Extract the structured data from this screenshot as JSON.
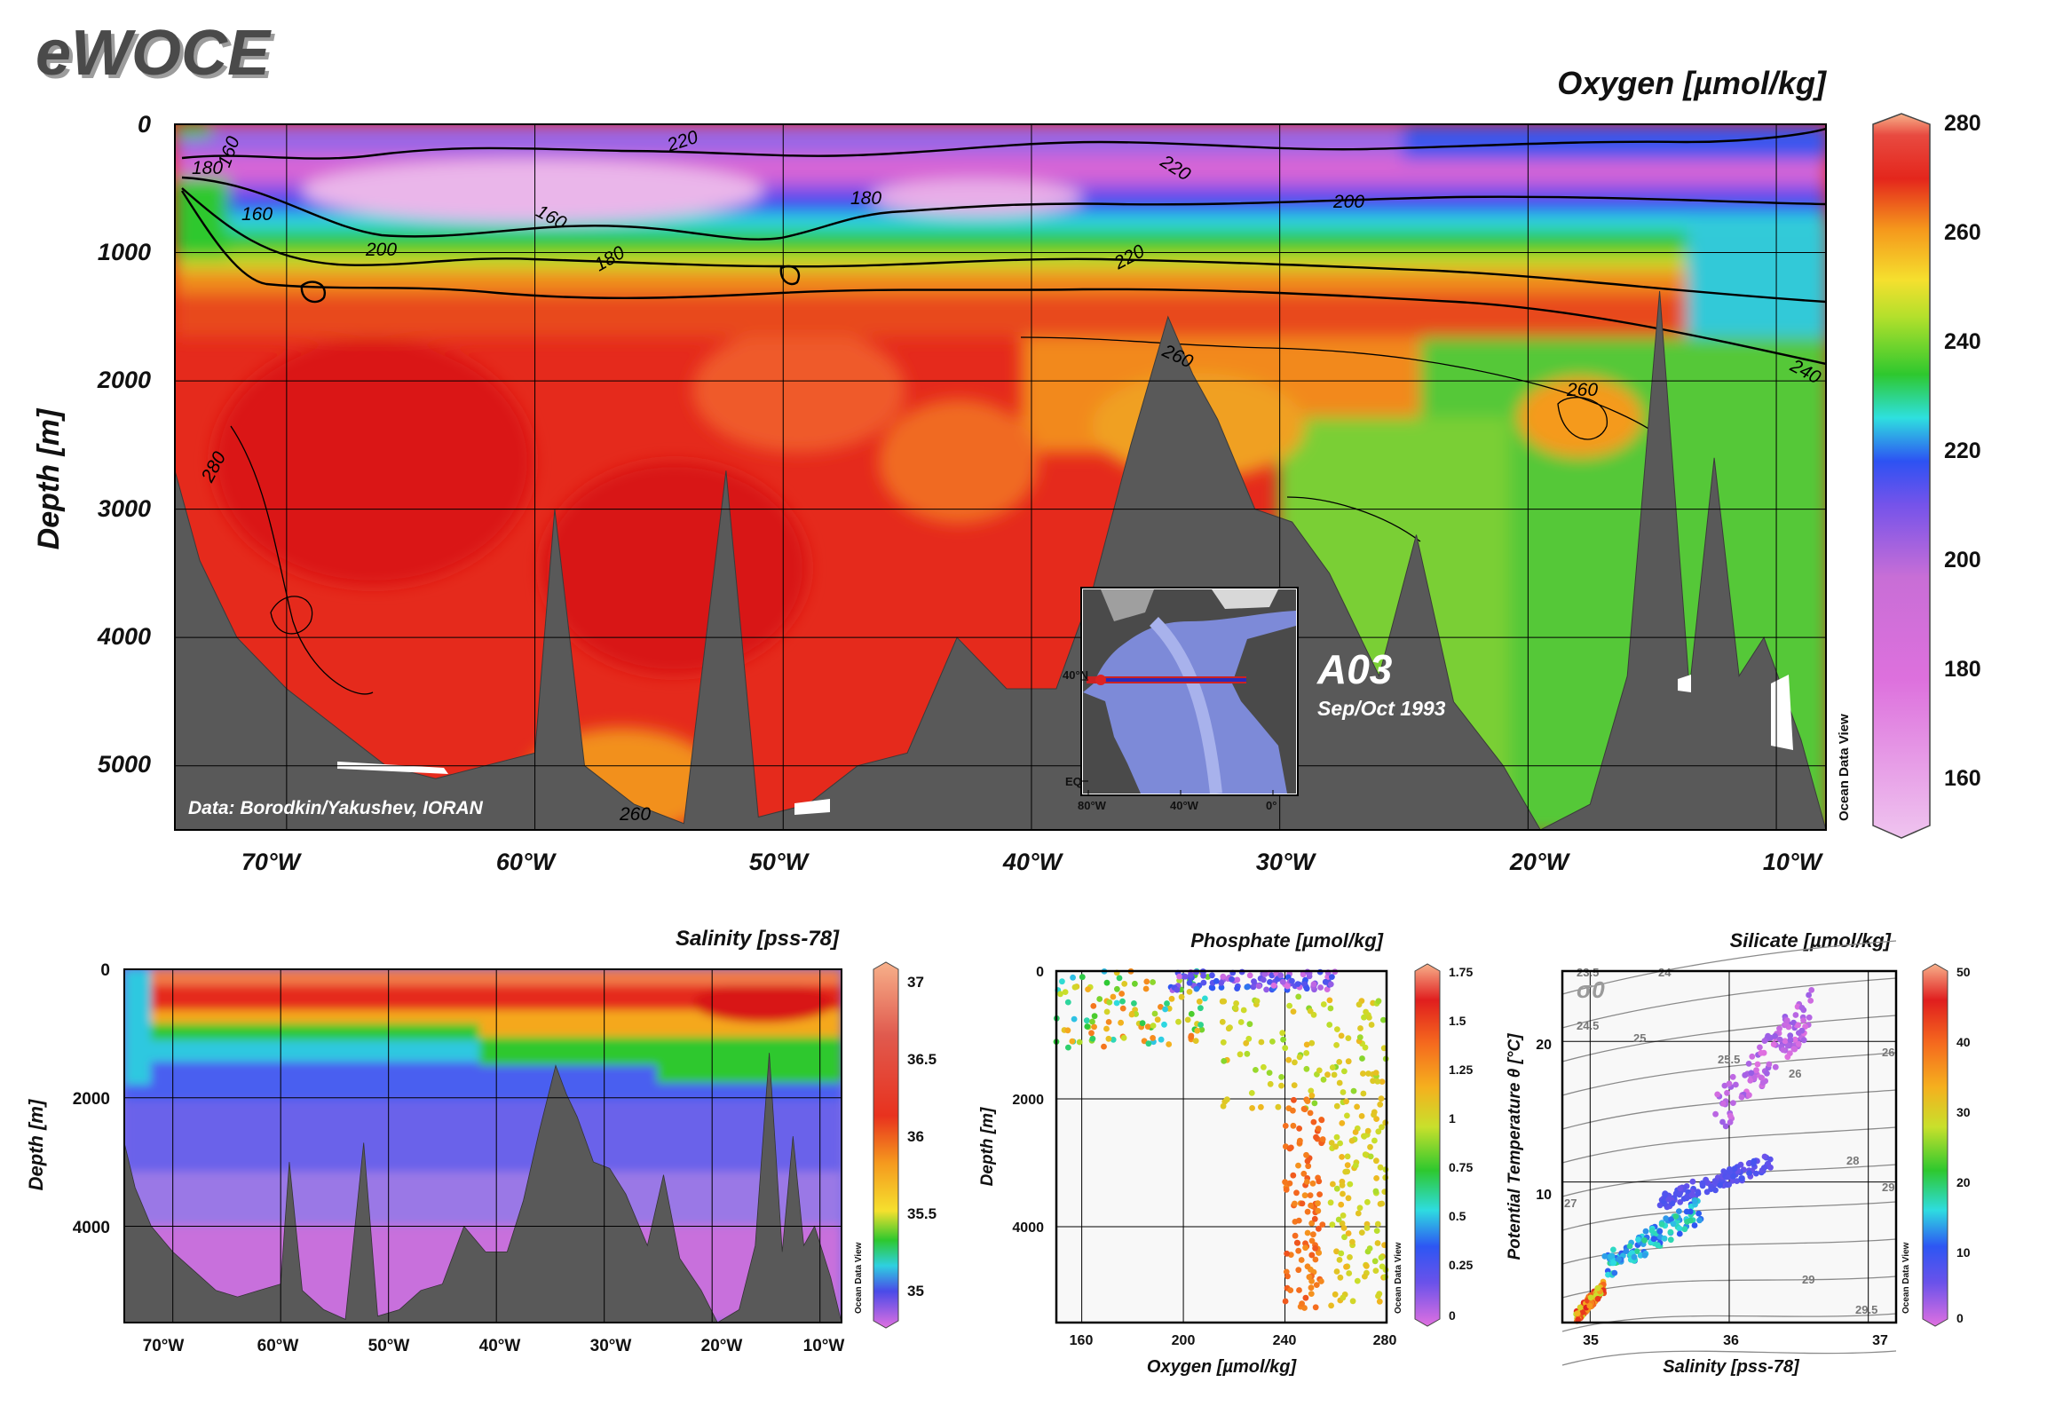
{
  "header": {
    "logo": "eWOCE",
    "section_name": "A03",
    "section_date": "Sep/Oct 1993",
    "credit": "Data: Borodkin/Yakushev, IORAN",
    "odv_mark": "Ocean Data View"
  },
  "colors": {
    "land": "#595959",
    "grid": "#000000",
    "oxygen_scale": [
      "#eab4ea",
      "#d75ed7",
      "#c86ad6",
      "#7b53e8",
      "#2b4cf5",
      "#2fd6e0",
      "#2ec82e",
      "#9fdf2e",
      "#f5e02e",
      "#f59a1e",
      "#e8321e",
      "#d91414",
      "#f7b08a"
    ]
  },
  "main_section": {
    "title": "Oxygen [µmol/kg]",
    "ylabel": "Depth [m]",
    "y_ticks": [
      "0",
      "1000",
      "2000",
      "3000",
      "4000",
      "5000"
    ],
    "x_ticks": [
      "70°W",
      "60°W",
      "50°W",
      "40°W",
      "30°W",
      "20°W",
      "10°W"
    ],
    "colorbar_ticks": [
      "280",
      "260",
      "240",
      "220",
      "200",
      "180",
      "160"
    ],
    "contour_labels": [
      "180",
      "160",
      "160",
      "200",
      "220",
      "160",
      "180",
      "180",
      "220",
      "220",
      "200",
      "260",
      "260",
      "240",
      "280",
      "260"
    ]
  },
  "inset_map": {
    "lat_labels": [
      "40°N",
      "EQ"
    ],
    "lon_labels": [
      "80°W",
      "40°W",
      "0°"
    ]
  },
  "salinity_panel": {
    "title": "Salinity [pss-78]",
    "ylabel": "Depth [m]",
    "y_ticks": [
      "0",
      "2000",
      "4000"
    ],
    "x_ticks": [
      "70°W",
      "60°W",
      "50°W",
      "40°W",
      "30°W",
      "20°W",
      "10°W"
    ],
    "colorbar_ticks": [
      "37",
      "36.5",
      "36",
      "35.5",
      "35"
    ]
  },
  "phosphate_panel": {
    "title": "Phosphate [µmol/kg]",
    "ylabel": "Depth [m]",
    "xlabel": "Oxygen [µmol/kg]",
    "y_ticks": [
      "0",
      "2000",
      "4000"
    ],
    "x_ticks": [
      "160",
      "200",
      "240",
      "280"
    ],
    "colorbar_ticks": [
      "1.75",
      "1.5",
      "1.25",
      "1",
      "0.75",
      "0.5",
      "0.25",
      "0"
    ]
  },
  "silicate_panel": {
    "title": "Silicate [µmol/kg]",
    "ylabel": "Potential Temperature θ [°C]",
    "xlabel": "Salinity [pss-78]",
    "sigma_label": "σ0",
    "y_ticks": [
      "20",
      "10"
    ],
    "x_ticks": [
      "35",
      "36",
      "37"
    ],
    "isopycnal_labels": [
      "23.5",
      "24",
      "24.5",
      "25",
      "25.5",
      "26",
      "26",
      "27",
      "28",
      "29",
      "29.5",
      "29"
    ],
    "colorbar_ticks": [
      "50",
      "40",
      "30",
      "20",
      "10",
      "0"
    ]
  },
  "chart_data": [
    {
      "type": "heatmap",
      "title": "Oxygen [µmol/kg]",
      "ylabel": "Depth [m]",
      "xlim": [
        -74.5,
        -8
      ],
      "ylim": [
        0,
        5500
      ],
      "x_ticks": [
        -70,
        -60,
        -50,
        -40,
        -30,
        -20,
        -10
      ],
      "y_ticks": [
        0,
        1000,
        2000,
        3000,
        4000,
        5000
      ],
      "colorbar_range": [
        150,
        280
      ],
      "contour_levels": [
        160,
        180,
        200,
        220,
        240,
        260,
        280
      ],
      "bathymetry": [
        [
          -74.5,
          2700
        ],
        [
          -73.5,
          3400
        ],
        [
          -72,
          4000
        ],
        [
          -70,
          4400
        ],
        [
          -68,
          4700
        ],
        [
          -66,
          5000
        ],
        [
          -64,
          5100
        ],
        [
          -62,
          5000
        ],
        [
          -60,
          4900
        ],
        [
          -59.2,
          3000
        ],
        [
          -58,
          5000
        ],
        [
          -56,
          5300
        ],
        [
          -54,
          5450
        ],
        [
          -52.3,
          2700
        ],
        [
          -51,
          5400
        ],
        [
          -49,
          5300
        ],
        [
          -47,
          5000
        ],
        [
          -45,
          4900
        ],
        [
          -43,
          4000
        ],
        [
          -41,
          4400
        ],
        [
          -39,
          4400
        ],
        [
          -37.5,
          3600
        ],
        [
          -36,
          2500
        ],
        [
          -34.5,
          1500
        ],
        [
          -33.5,
          1950
        ],
        [
          -32.5,
          2300
        ],
        [
          -31,
          3000
        ],
        [
          -29.5,
          3100
        ],
        [
          -28,
          3500
        ],
        [
          -26,
          4300
        ],
        [
          -24.5,
          3200
        ],
        [
          -23,
          4500
        ],
        [
          -21,
          5000
        ],
        [
          -19.5,
          5500
        ],
        [
          -17.5,
          5300
        ],
        [
          -16,
          4300
        ],
        [
          -14.7,
          1300
        ],
        [
          -13.5,
          4400
        ],
        [
          -12.5,
          2600
        ],
        [
          -11.5,
          4300
        ],
        [
          -10.5,
          4000
        ],
        [
          -9,
          4800
        ],
        [
          -8,
          5500
        ]
      ]
    },
    {
      "type": "heatmap",
      "title": "Salinity [pss-78]",
      "ylabel": "Depth [m]",
      "xlim": [
        -74.5,
        -8
      ],
      "ylim": [
        0,
        5500
      ],
      "x_ticks": [
        -70,
        -60,
        -50,
        -40,
        -30,
        -20,
        -10
      ],
      "y_ticks": [
        0,
        2000,
        4000
      ],
      "colorbar_range": [
        34.9,
        37.1
      ]
    },
    {
      "type": "scatter",
      "title": "Phosphate [µmol/kg]",
      "xlabel": "Oxygen [µmol/kg]",
      "ylabel": "Depth [m]",
      "xlim": [
        150,
        280
      ],
      "ylim": [
        0,
        5500
      ],
      "x_ticks": [
        160,
        200,
        240,
        280
      ],
      "y_ticks": [
        0,
        2000,
        4000
      ],
      "colorbar_range": [
        0,
        1.75
      ],
      "clusters": [
        {
          "x_range": [
            150,
            210
          ],
          "y_range": [
            0,
            1200
          ],
          "color_range": [
            0.6,
            1.5
          ]
        },
        {
          "x_range": [
            195,
            260
          ],
          "y_range": [
            0,
            300
          ],
          "color_range": [
            0.0,
            0.5
          ]
        },
        {
          "x_range": [
            215,
            280
          ],
          "y_range": [
            400,
            2200
          ],
          "color_range": [
            1.0,
            1.3
          ]
        },
        {
          "x_range": [
            240,
            255
          ],
          "y_range": [
            2000,
            5300
          ],
          "color_range": [
            1.4,
            1.6
          ]
        },
        {
          "x_range": [
            258,
            280
          ],
          "y_range": [
            2000,
            5300
          ],
          "color_range": [
            1.05,
            1.3
          ]
        }
      ]
    },
    {
      "type": "scatter",
      "title": "Silicate [µmol/kg]",
      "xlabel": "Salinity [pss-78]",
      "ylabel": "Potential Temperature θ [°C]",
      "xlim": [
        34.8,
        37.2
      ],
      "ylim": [
        0,
        25
      ],
      "x_ticks": [
        35,
        36,
        37
      ],
      "y_ticks": [
        10,
        20
      ],
      "colorbar_range": [
        0,
        50
      ],
      "clusters": [
        {
          "x_range": [
            35.9,
            36.6
          ],
          "y_range": [
            13,
            24
          ],
          "color_range": [
            0,
            4
          ]
        },
        {
          "x_range": [
            35.5,
            36.3
          ],
          "y_range": [
            8,
            12
          ],
          "color_range": [
            6,
            10
          ]
        },
        {
          "x_range": [
            35.1,
            35.8
          ],
          "y_range": [
            3,
            9
          ],
          "color_range": [
            12,
            22
          ]
        },
        {
          "x_range": [
            34.9,
            35.1
          ],
          "y_range": [
            0,
            3
          ],
          "color_range": [
            30,
            50
          ]
        }
      ]
    }
  ]
}
